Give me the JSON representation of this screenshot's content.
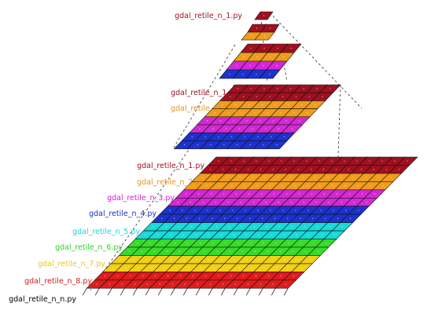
{
  "diagram": {
    "pyramids": [
      {
        "id": "pyramid-1",
        "labels": [
          {
            "text": "gdal_retile_n_1.py",
            "color": "#a01020"
          }
        ]
      },
      {
        "id": "pyramid-2",
        "labels": [
          {
            "text": "gdal_retile_n_1.py",
            "color": "#a01020"
          },
          {
            "text": "gdal_retile_n_2.py",
            "color": "#e8941c"
          }
        ]
      },
      {
        "id": "pyramid-3",
        "labels": [
          {
            "text": "gdal_retile_n_1.py",
            "color": "#a01020"
          },
          {
            "text": "gdal_retile_n_2.py",
            "color": "#e8941c"
          },
          {
            "text": "gdal_retile_n_3.py",
            "color": "#d020d0"
          },
          {
            "text": "gdal_retile_n_4.py",
            "color": "#1c2ec8"
          },
          {
            "text": "gdal_retile_n_5.py",
            "color": "#1cd6d6"
          },
          {
            "text": "gdal_retile_n_6.py",
            "color": "#2ed02e"
          },
          {
            "text": "gdal_retile_n_7.py",
            "color": "#e8c81c"
          },
          {
            "text": "gdal_retile_n_8.py",
            "color": "#d01c1c"
          },
          {
            "text": "gdal_retile_n_n.py",
            "color": "#000000"
          }
        ]
      }
    ],
    "band_colors": [
      "#a01020",
      "#f09c1c",
      "#d428d4",
      "#1c32d0",
      "#18dada",
      "#38dc28",
      "#f0d018",
      "#e01c1c"
    ]
  }
}
